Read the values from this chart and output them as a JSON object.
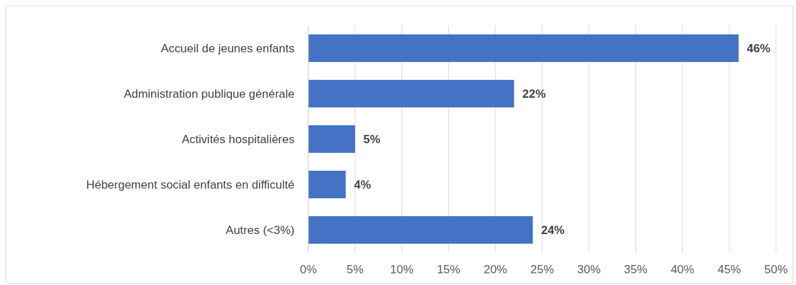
{
  "chart_data": {
    "type": "bar",
    "orientation": "horizontal",
    "categories": [
      "Accueil de jeunes enfants",
      "Administration publique générale",
      "Activités hospitalières",
      "Hébergement social enfants en difficulté",
      "Autres (<3%)"
    ],
    "values": [
      46,
      22,
      5,
      4,
      24
    ],
    "color": "#4472c4",
    "value_labels": [
      "46%",
      "22%",
      "5%",
      "4%",
      "24%"
    ],
    "xlim": [
      0,
      50
    ],
    "xticks": [
      {
        "value": 0,
        "label": "0%"
      },
      {
        "value": 5,
        "label": "5%"
      },
      {
        "value": 10,
        "label": "10%"
      },
      {
        "value": 15,
        "label": "15%"
      },
      {
        "value": 20,
        "label": "20%"
      },
      {
        "value": 25,
        "label": "25%"
      },
      {
        "value": 30,
        "label": "30%"
      },
      {
        "value": 35,
        "label": "35%"
      },
      {
        "value": 40,
        "label": "40%"
      },
      {
        "value": 45,
        "label": "45%"
      },
      {
        "value": 50,
        "label": "50%"
      }
    ],
    "grid": "x"
  }
}
